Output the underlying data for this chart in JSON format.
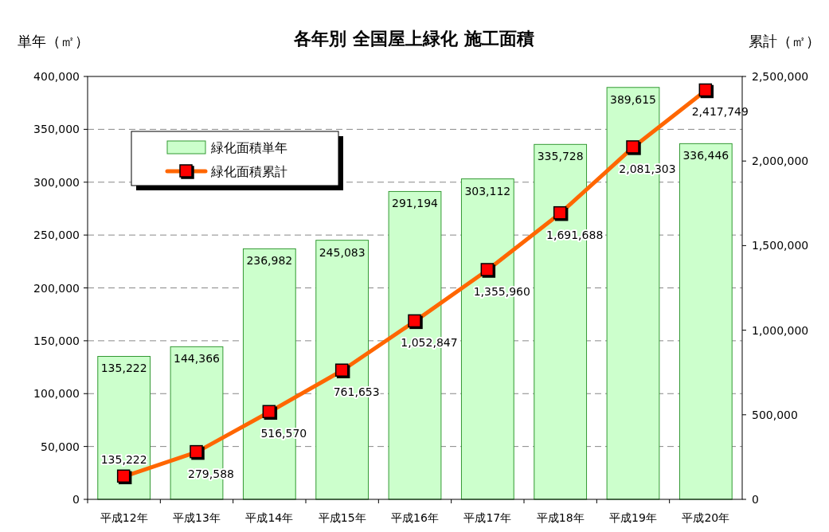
{
  "chart_data": {
    "type": "bar",
    "title": "各年別 全国屋上緑化 施工面積",
    "ylabel": "単年（㎡）",
    "y2label": "累計（㎡）",
    "categories": [
      "平成12年",
      "平成13年",
      "平成14年",
      "平成15年",
      "平成16年",
      "平成17年",
      "平成18年",
      "平成19年",
      "平成20年"
    ],
    "series": [
      {
        "name": "緑化面積単年",
        "color": "#ccffcc",
        "values": [
          135222,
          144366,
          236982,
          245083,
          291194,
          303112,
          335728,
          389615,
          336446
        ],
        "value_labels": [
          "135,222",
          "144,366",
          "236,982",
          "245,083",
          "291,194",
          "303,112",
          "335,728",
          "389,615",
          "336,446"
        ]
      },
      {
        "name": "緑化面積累計",
        "type": "line",
        "axis": "y2",
        "color": "#ff6600",
        "values": [
          135222,
          279588,
          516570,
          761653,
          1052847,
          1355960,
          1691688,
          2081303,
          2417749
        ],
        "value_labels": [
          "135,222",
          "279,588",
          "516,570",
          "761,653",
          "1,052,847",
          "1,355,960",
          "1,691,688",
          "2,081,303",
          "2,417,749"
        ]
      }
    ],
    "ylim": [
      0,
      400000
    ],
    "yticks": [
      0,
      {
        "value": 50000,
        "label": "50,000"
      },
      {
        "value": 100000,
        "label": "100,000"
      },
      {
        "value": 150000,
        "label": "150,000"
      },
      {
        "value": 200000,
        "label": "200,000"
      },
      {
        "value": 250000,
        "label": "250,000"
      },
      {
        "value": 300000,
        "label": "300,000"
      },
      {
        "value": 350000,
        "label": "350,000"
      },
      {
        "value": 400000,
        "label": "400,000"
      }
    ],
    "y2lim": [
      0,
      2500000
    ],
    "y2ticks": [
      0,
      {
        "value": 500000,
        "label": "500,000"
      },
      {
        "value": 1000000,
        "label": "1,000,000"
      },
      {
        "value": 1500000,
        "label": "1,500,000"
      },
      {
        "value": 2000000,
        "label": "2,000,000"
      },
      {
        "value": 2500000,
        "label": "2,500,000"
      }
    ],
    "grid": "y",
    "legend": "top left",
    "marker": "square"
  }
}
